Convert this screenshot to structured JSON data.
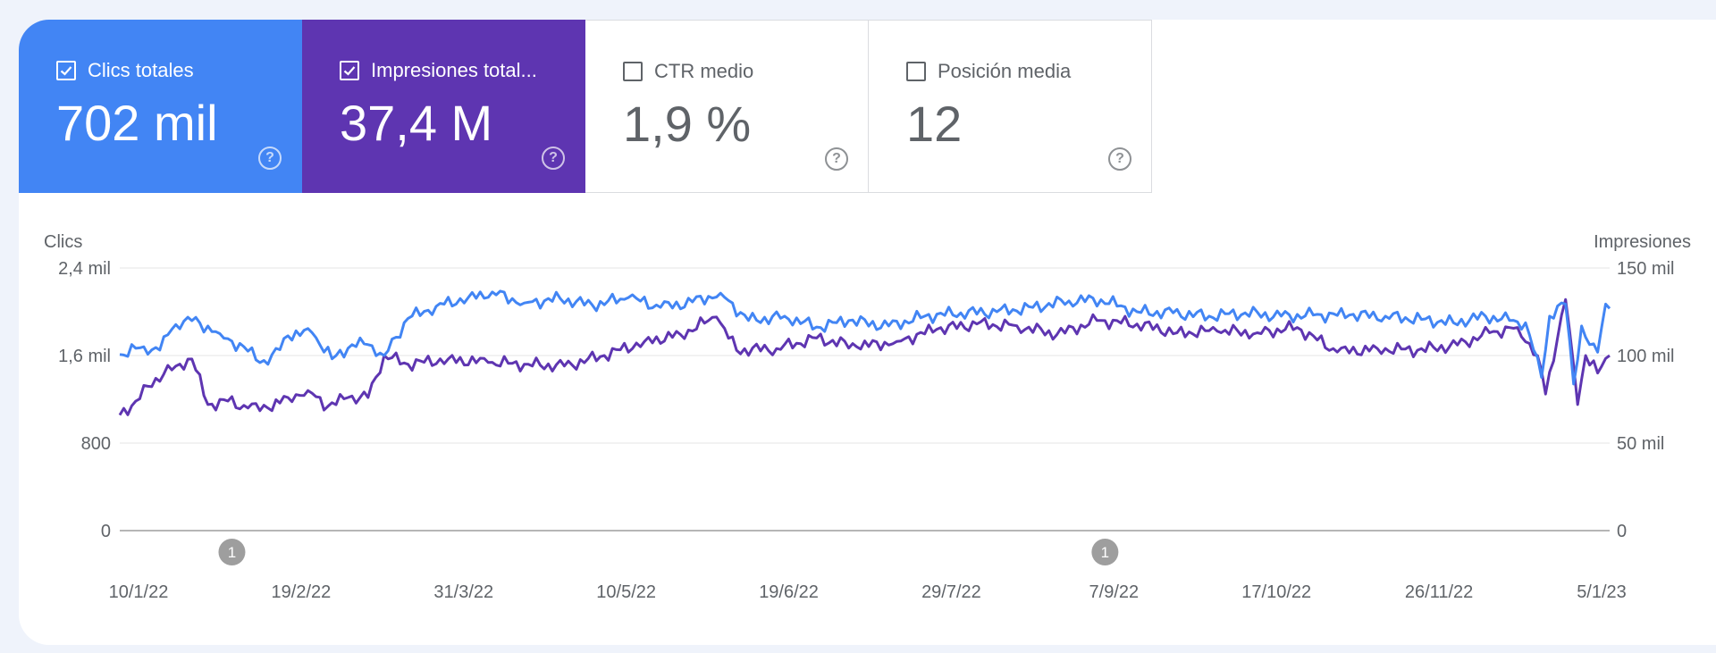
{
  "metrics": [
    {
      "label": "Clics totales",
      "value": "702 mil",
      "checked": true
    },
    {
      "label": "Impresiones total...",
      "value": "37,4 M",
      "checked": true
    },
    {
      "label": "CTR medio",
      "value": "1,9 %",
      "checked": false
    },
    {
      "label": "Posición media",
      "value": "12",
      "checked": false
    }
  ],
  "icons": {
    "checkbox": "checkbox-icon",
    "help": "help-circle-icon",
    "annotation": "annotation-marker"
  },
  "colors": {
    "clicks": "#4285f4",
    "impressions": "#5e35b1",
    "background": "#eff3fb"
  },
  "chart_data": {
    "type": "line",
    "left_axis_title": "Clics",
    "right_axis_title": "Impresiones",
    "left_ticks": [
      "2,4 mil",
      "1,6 mil",
      "800",
      "0"
    ],
    "right_ticks": [
      "150 mil",
      "100 mil",
      "50 mil",
      "0"
    ],
    "ylim_left": [
      0,
      2400
    ],
    "ylim_right": [
      0,
      150000
    ],
    "x_ticks": [
      "10/1/22",
      "19/2/22",
      "31/3/22",
      "10/5/22",
      "19/6/22",
      "29/7/22",
      "7/9/22",
      "17/10/22",
      "26/11/22",
      "5/1/23"
    ],
    "xlim": [
      "2022-01-07",
      "2023-01-14"
    ],
    "grid": true,
    "annotations": [
      {
        "date": "2022-02-04",
        "label": "1"
      },
      {
        "date": "2022-09-10",
        "label": "1"
      }
    ],
    "series": [
      {
        "name": "Clics",
        "axis": "left",
        "color": "#4285f4",
        "keypoints": [
          [
            "2022-01-07",
            1610
          ],
          [
            "2022-01-13",
            1680
          ],
          [
            "2022-01-17",
            1650
          ],
          [
            "2022-01-20",
            1840
          ],
          [
            "2022-01-24",
            1950
          ],
          [
            "2022-02-01",
            1800
          ],
          [
            "2022-02-08",
            1640
          ],
          [
            "2022-02-13",
            1520
          ],
          [
            "2022-02-18",
            1780
          ],
          [
            "2022-02-24",
            1810
          ],
          [
            "2022-03-01",
            1570
          ],
          [
            "2022-03-06",
            1700
          ],
          [
            "2022-03-10",
            1700
          ],
          [
            "2022-03-14",
            1600
          ],
          [
            "2022-03-20",
            1940
          ],
          [
            "2022-03-27",
            2050
          ],
          [
            "2022-04-04",
            2130
          ],
          [
            "2022-04-10",
            2180
          ],
          [
            "2022-04-18",
            2080
          ],
          [
            "2022-04-27",
            2120
          ],
          [
            "2022-05-05",
            2060
          ],
          [
            "2022-05-14",
            2130
          ],
          [
            "2022-05-22",
            2040
          ],
          [
            "2022-05-30",
            2090
          ],
          [
            "2022-06-06",
            2170
          ],
          [
            "2022-06-13",
            1920
          ],
          [
            "2022-06-22",
            1960
          ],
          [
            "2022-06-30",
            1860
          ],
          [
            "2022-07-08",
            1920
          ],
          [
            "2022-07-18",
            1870
          ],
          [
            "2022-07-27",
            1960
          ],
          [
            "2022-08-05",
            1990
          ],
          [
            "2022-08-14",
            2000
          ],
          [
            "2022-08-23",
            2040
          ],
          [
            "2022-09-01",
            2100
          ],
          [
            "2022-09-09",
            2110
          ],
          [
            "2022-09-18",
            2000
          ],
          [
            "2022-09-27",
            1990
          ],
          [
            "2022-10-06",
            1960
          ],
          [
            "2022-10-15",
            1990
          ],
          [
            "2022-10-24",
            1960
          ],
          [
            "2022-11-01",
            1970
          ],
          [
            "2022-11-10",
            1970
          ],
          [
            "2022-11-19",
            1960
          ],
          [
            "2022-11-28",
            1930
          ],
          [
            "2022-12-06",
            1900
          ],
          [
            "2022-12-14",
            1960
          ],
          [
            "2022-12-20",
            1920
          ],
          [
            "2022-12-24",
            1900
          ],
          [
            "2022-12-28",
            1400
          ],
          [
            "2022-12-30",
            1960
          ],
          [
            "2023-01-03",
            2070
          ],
          [
            "2023-01-05",
            1340
          ],
          [
            "2023-01-07",
            1870
          ],
          [
            "2023-01-09",
            1700
          ],
          [
            "2023-01-11",
            1630
          ],
          [
            "2023-01-13",
            2070
          ],
          [
            "2023-01-14",
            2030
          ]
        ]
      },
      {
        "name": "Impresiones",
        "axis": "right",
        "color": "#5e35b1",
        "keypoints": [
          [
            "2022-01-07",
            66000
          ],
          [
            "2022-01-11",
            74000
          ],
          [
            "2022-01-16",
            87000
          ],
          [
            "2022-01-21",
            94000
          ],
          [
            "2022-01-25",
            98000
          ],
          [
            "2022-01-29",
            72000
          ],
          [
            "2022-02-03",
            74000
          ],
          [
            "2022-02-08",
            70000
          ],
          [
            "2022-02-13",
            70000
          ],
          [
            "2022-02-18",
            76000
          ],
          [
            "2022-02-23",
            80000
          ],
          [
            "2022-02-28",
            71000
          ],
          [
            "2022-03-05",
            76000
          ],
          [
            "2022-03-10",
            76000
          ],
          [
            "2022-03-14",
            100000
          ],
          [
            "2022-03-20",
            95000
          ],
          [
            "2022-03-30",
            98000
          ],
          [
            "2022-04-09",
            96000
          ],
          [
            "2022-04-19",
            95000
          ],
          [
            "2022-04-28",
            94000
          ],
          [
            "2022-05-08",
            100000
          ],
          [
            "2022-05-18",
            108000
          ],
          [
            "2022-05-27",
            112000
          ],
          [
            "2022-06-05",
            122000
          ],
          [
            "2022-06-10",
            103000
          ],
          [
            "2022-06-20",
            104000
          ],
          [
            "2022-06-30",
            110000
          ],
          [
            "2022-07-10",
            105000
          ],
          [
            "2022-07-20",
            108000
          ],
          [
            "2022-07-30",
            115000
          ],
          [
            "2022-08-09",
            118000
          ],
          [
            "2022-08-19",
            117000
          ],
          [
            "2022-08-29",
            112000
          ],
          [
            "2022-09-08",
            120000
          ],
          [
            "2022-09-18",
            118000
          ],
          [
            "2022-09-28",
            113000
          ],
          [
            "2022-10-08",
            114000
          ],
          [
            "2022-10-18",
            113000
          ],
          [
            "2022-10-28",
            116000
          ],
          [
            "2022-11-07",
            102000
          ],
          [
            "2022-11-17",
            104000
          ],
          [
            "2022-11-27",
            103000
          ],
          [
            "2022-12-07",
            106000
          ],
          [
            "2022-12-15",
            113000
          ],
          [
            "2022-12-22",
            116000
          ],
          [
            "2022-12-27",
            100000
          ],
          [
            "2022-12-29",
            78000
          ],
          [
            "2023-01-01",
            110000
          ],
          [
            "2023-01-03",
            132000
          ],
          [
            "2023-01-06",
            72000
          ],
          [
            "2023-01-08",
            100000
          ],
          [
            "2023-01-11",
            90000
          ],
          [
            "2023-01-14",
            100000
          ]
        ]
      }
    ]
  }
}
